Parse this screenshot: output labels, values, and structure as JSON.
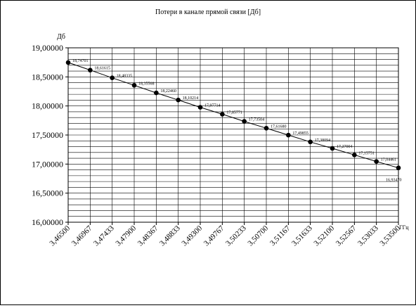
{
  "chart_data": {
    "type": "line",
    "title": "Потери в канале прямой связи [Дб]",
    "ylabel": "Дб",
    "xlabel": "ГГц",
    "ylim": [
      16.0,
      19.0
    ],
    "y_ticks": [
      "16,00000",
      "16,50000",
      "17,00000",
      "17,50000",
      "18,00000",
      "18,50000",
      "19,00000"
    ],
    "x_ticks": [
      "3,46500",
      "3,46967",
      "3,47433",
      "3,47900",
      "3,48367",
      "3,48833",
      "3,49300",
      "3,49767",
      "3,50233",
      "3,50700",
      "3,51167",
      "3,51633",
      "3,52100",
      "3,52567",
      "3,53033",
      "3,53500"
    ],
    "grid": true,
    "series": [
      {
        "x": [
          3.465,
          3.46967,
          3.47433,
          3.479,
          3.48367,
          3.48833,
          3.493,
          3.49767,
          3.50233,
          3.507,
          3.51167,
          3.51633,
          3.521,
          3.52567,
          3.53033,
          3.535
        ],
        "values": [
          18.74701,
          18.61615,
          18.48335,
          18.35568,
          18.2246,
          18.10214,
          17.97714,
          17.85771,
          17.73504,
          17.6168,
          17.49855,
          17.38094,
          17.27004,
          17.15751,
          17.04461,
          16.9347
        ],
        "labels": [
          "18,74701",
          "18,61615",
          "18,48335",
          "18,35568",
          "18,22460",
          "18,10214",
          "17,97714",
          "17,85771",
          "17,73504",
          "17,61680",
          "17,49855",
          "17,38094",
          "17,27004",
          "17,15751",
          "17,04461",
          "16,93470"
        ]
      }
    ]
  }
}
